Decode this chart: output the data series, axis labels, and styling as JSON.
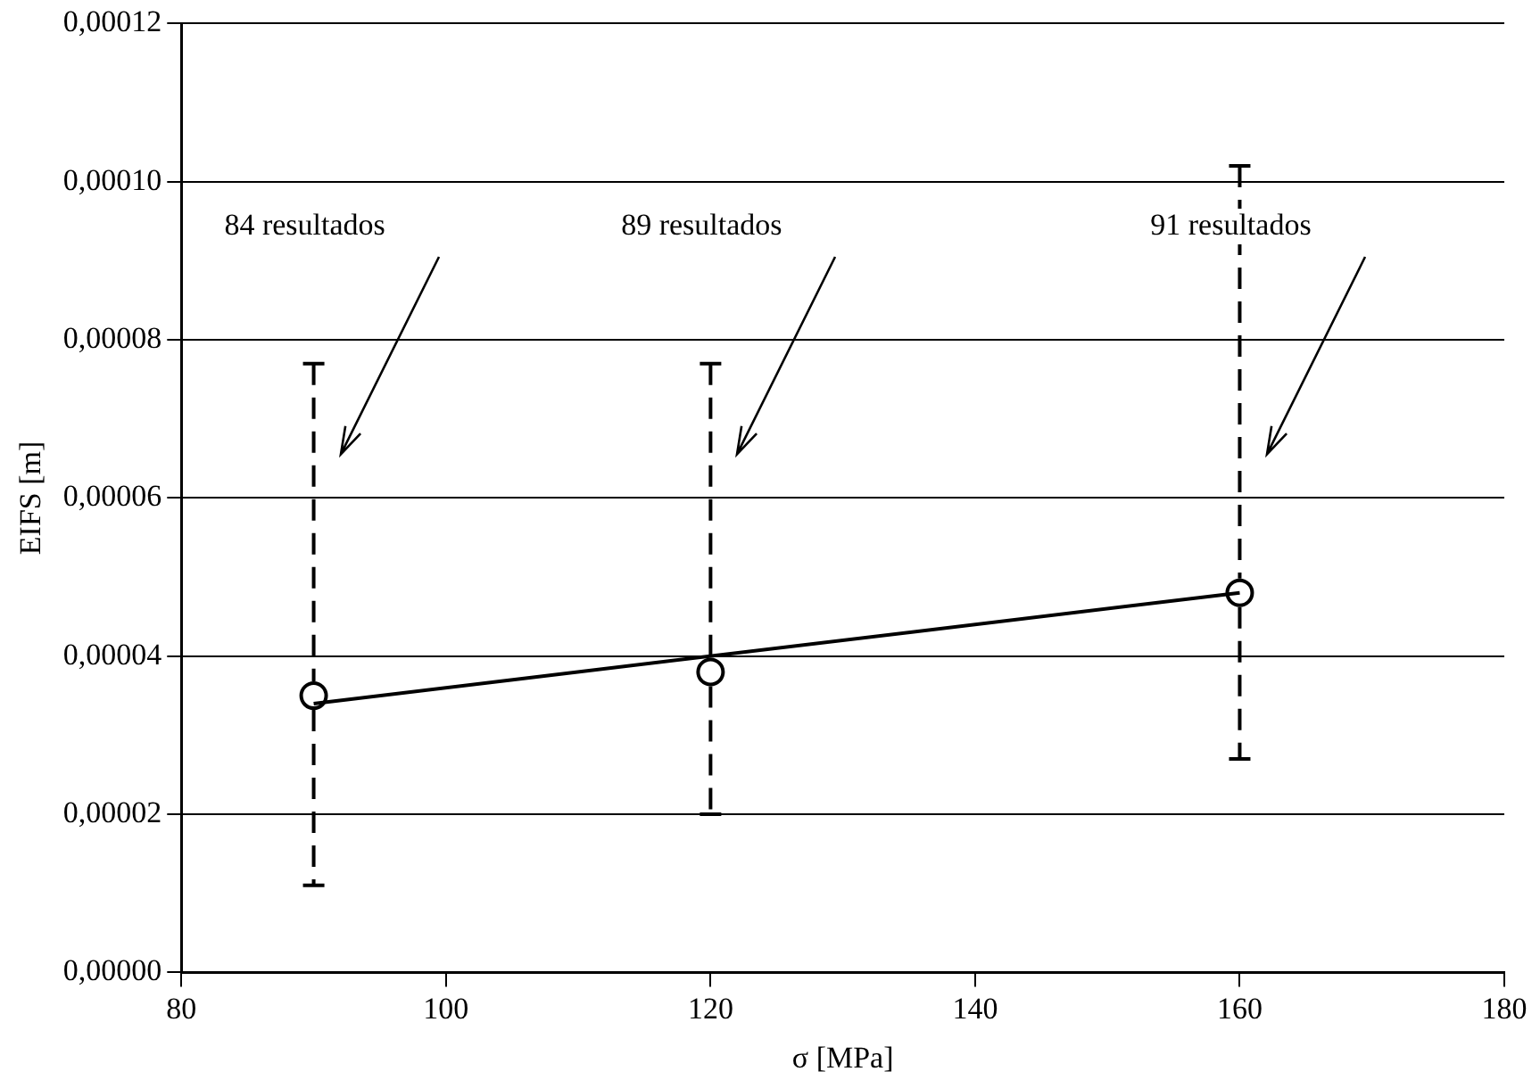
{
  "chart_data": {
    "type": "scatter",
    "xlabel": "σ [MPa]",
    "ylabel": "EIFS [m]",
    "xlim": [
      80,
      180
    ],
    "xticks": [
      80,
      100,
      120,
      140,
      160,
      180
    ],
    "ylim": [
      0,
      0.00012
    ],
    "yticks": [
      {
        "value": 0,
        "label": "0,00000"
      },
      {
        "value": 2e-05,
        "label": "0,00002"
      },
      {
        "value": 4e-05,
        "label": "0,00004"
      },
      {
        "value": 6e-05,
        "label": "0,00006"
      },
      {
        "value": 8e-05,
        "label": "0,00008"
      },
      {
        "value": 0.0001,
        "label": "0,00010"
      },
      {
        "value": 0.00012,
        "label": "0,00012"
      }
    ],
    "grid": "y",
    "marker": "circle",
    "legend": false,
    "series": [
      {
        "type": "line",
        "color": "#000000",
        "x": [
          90,
          160
        ],
        "values": [
          3.4e-05,
          4.8e-05
        ],
        "marker": "none"
      },
      {
        "type": "scatter",
        "color": "#000000",
        "x": [
          90,
          120,
          160
        ],
        "values": [
          3.5e-05,
          3.8e-05,
          4.8e-05
        ],
        "errors": [
          [
            1.1e-05,
            7.7e-05
          ],
          [
            2e-05,
            7.7e-05
          ],
          [
            2.7e-05,
            0.000102
          ]
        ]
      }
    ],
    "annotations": [
      "84 resultados",
      "89 resultados",
      "91 resultados"
    ]
  }
}
